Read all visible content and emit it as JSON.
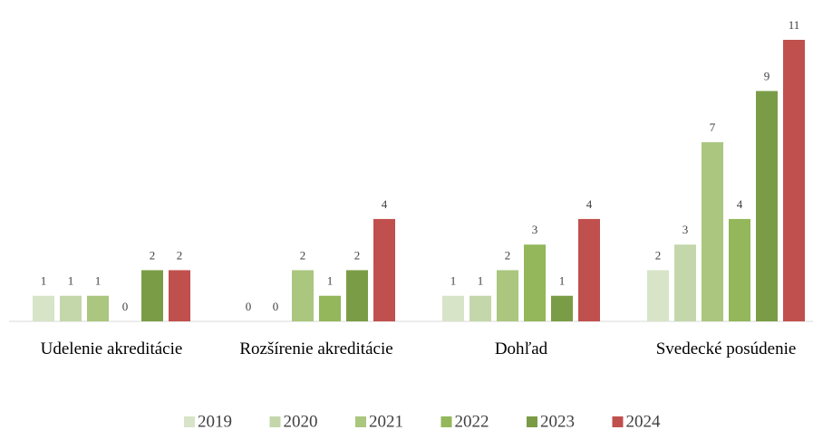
{
  "chart_data": {
    "type": "bar",
    "categories": [
      "Udelenie akreditácie",
      "Rozšírenie akreditácie",
      "Dohľad",
      "Svedecké posúdenie"
    ],
    "series": [
      {
        "name": "2019",
        "color": "#d7e4c8",
        "values": [
          1,
          0,
          1,
          2
        ]
      },
      {
        "name": "2020",
        "color": "#c4d7ab",
        "values": [
          1,
          0,
          1,
          3
        ]
      },
      {
        "name": "2021",
        "color": "#aac67f",
        "values": [
          1,
          2,
          2,
          7
        ]
      },
      {
        "name": "2022",
        "color": "#93b75a",
        "values": [
          0,
          1,
          3,
          4
        ]
      },
      {
        "name": "2023",
        "color": "#7b9c46",
        "values": [
          2,
          2,
          1,
          9
        ]
      },
      {
        "name": "2024",
        "color": "#c0504d",
        "values": [
          2,
          4,
          4,
          11
        ]
      }
    ]
  }
}
